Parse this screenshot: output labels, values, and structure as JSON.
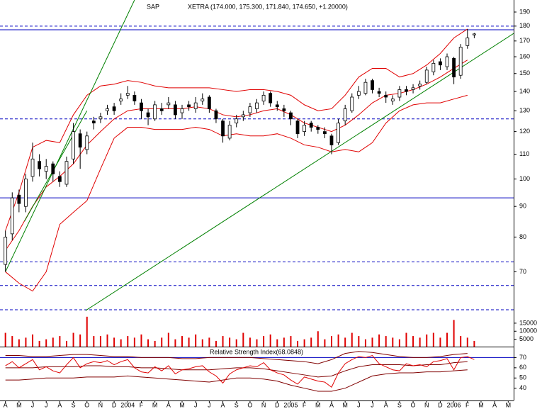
{
  "chart_data": [
    {
      "type": "candlestick",
      "title": "SAP",
      "subtitle": "XETRA (174.000, 175.300, 171.840, 174.650, +1.20000)",
      "log": true,
      "xlim": [
        -0.4,
        37.4
      ],
      "ylim": [
        60,
        199
      ],
      "yticks": [
        70,
        80,
        90,
        100,
        110,
        120,
        130,
        140,
        150,
        160,
        170,
        180,
        190
      ],
      "up_color": "#ffffff",
      "down_color": "#000000",
      "x": [
        0,
        0.5,
        1,
        1.5,
        2,
        2.5,
        3,
        3.5,
        4,
        4.5,
        5,
        5.5,
        6,
        6.5,
        7,
        7.5,
        8,
        8.5,
        9,
        9.5,
        10,
        10.5,
        11,
        11.5,
        12,
        12.5,
        13,
        13.5,
        14,
        14.5,
        15,
        15.5,
        16,
        16.5,
        17,
        17.5,
        18,
        18.5,
        19,
        19.5,
        20,
        20.5,
        21,
        21.5,
        22,
        22.5,
        23,
        23.5,
        24,
        24.5,
        25,
        25.5,
        26,
        26.5,
        27,
        27.5,
        28,
        28.5,
        29,
        29.5,
        30,
        30.5,
        31,
        31.5,
        32,
        32.5,
        33,
        33.5,
        34,
        34.5
      ],
      "open": [
        72,
        81,
        94,
        90,
        101,
        107,
        103,
        106,
        101,
        98,
        108,
        119,
        112,
        125,
        126,
        130,
        132,
        135,
        138,
        138,
        134,
        129,
        126,
        131,
        133,
        133,
        129,
        133,
        131,
        135,
        137,
        130,
        125,
        117,
        124,
        127,
        129,
        131,
        135,
        139,
        133,
        131,
        129,
        125,
        120,
        124,
        122,
        120,
        118,
        115,
        125,
        130,
        138,
        139,
        146,
        140,
        138,
        135,
        137,
        141,
        141,
        143,
        145,
        151,
        157,
        154,
        159,
        149,
        167,
        174
      ],
      "high": [
        82,
        95,
        96,
        102,
        115,
        110,
        108,
        107,
        103,
        109,
        124,
        121,
        120,
        127,
        129,
        133,
        134,
        139,
        143,
        140,
        136,
        131,
        135,
        134,
        137,
        135,
        133,
        135,
        137,
        139,
        138,
        131,
        126,
        125,
        128,
        130,
        134,
        136,
        140,
        140,
        135,
        133,
        130,
        126,
        125,
        125,
        123,
        122,
        119,
        126,
        133,
        139,
        143,
        147,
        147,
        142,
        140,
        138,
        143,
        143,
        144,
        146,
        154,
        158,
        159,
        162,
        160,
        168,
        178,
        175.3
      ],
      "low": [
        70,
        79,
        88,
        88,
        99,
        101,
        100,
        99,
        97,
        97,
        106,
        104,
        110,
        121,
        124,
        128,
        128,
        133,
        136,
        133,
        126,
        123,
        125,
        128,
        131,
        126,
        126,
        130,
        129,
        133,
        129,
        124,
        115,
        116,
        122,
        125,
        127,
        129,
        133,
        132,
        130,
        127,
        123,
        117,
        118,
        120,
        119,
        117,
        110,
        114,
        123,
        129,
        136,
        138,
        139,
        137,
        134,
        133,
        135,
        138,
        139,
        141,
        144,
        149,
        152,
        152,
        144,
        147,
        165,
        171.84
      ],
      "close": [
        80,
        93,
        91,
        100,
        108,
        104,
        105,
        102,
        99,
        107,
        120,
        113,
        118,
        124,
        127,
        131,
        130,
        136,
        139,
        135,
        130,
        127,
        133,
        130,
        134,
        128,
        131,
        132,
        134,
        136,
        131,
        126,
        118,
        123,
        126,
        128,
        132,
        134,
        138,
        134,
        132,
        130,
        126,
        119,
        123,
        122,
        121,
        119,
        114,
        124,
        131,
        137,
        140,
        145,
        141,
        139,
        137,
        136,
        141,
        140,
        142,
        144,
        152,
        156,
        155,
        160,
        148,
        166,
        172,
        174.65
      ],
      "band_x": [
        0,
        1,
        2,
        3,
        4,
        5,
        6,
        7,
        8,
        9,
        10,
        11,
        12,
        13,
        14,
        15,
        16,
        17,
        18,
        19,
        20,
        21,
        22,
        23,
        24,
        25,
        26,
        27,
        28,
        29,
        30,
        31,
        32,
        33,
        34
      ],
      "bands": [
        {
          "color": "#e00000",
          "values": [
            82,
            95,
            113,
            116,
            115,
            128,
            138,
            143,
            144,
            146,
            145,
            143,
            142,
            142,
            142,
            142,
            141,
            140,
            141,
            141,
            140,
            138,
            133,
            130,
            131,
            138,
            148,
            153,
            153,
            148,
            150,
            155,
            162,
            172,
            178
          ]
        },
        {
          "color": "#e00000",
          "values": [
            76,
            82,
            90,
            97,
            101,
            106,
            114,
            120,
            126,
            130,
            131,
            131,
            131,
            131,
            132,
            131,
            128,
            127,
            128,
            130,
            131,
            128,
            124,
            122,
            120,
            123,
            128,
            134,
            138,
            139,
            141,
            144,
            148,
            153,
            158
          ]
        },
        {
          "color": "#e00000",
          "values": [
            70,
            67,
            65,
            70,
            84,
            88,
            92,
            104,
            117,
            122,
            122,
            121,
            121,
            121,
            122,
            121,
            118,
            119,
            118,
            118,
            119,
            117,
            114,
            113,
            111,
            112,
            111,
            115,
            124,
            130,
            133,
            134,
            134,
            136,
            138
          ]
        }
      ],
      "hlines": [
        {
          "value": 180,
          "style": "dashed",
          "color": "#0000c0"
        },
        {
          "value": 177.5,
          "style": "solid",
          "color": "#0000c0"
        },
        {
          "value": 126,
          "style": "dashed",
          "color": "#0000c0"
        },
        {
          "value": 93,
          "style": "solid",
          "color": "#0000c0"
        },
        {
          "value": 72.7,
          "style": "dashed",
          "color": "#0000c0"
        },
        {
          "value": 66.4,
          "style": "dashed",
          "color": "#0000c0"
        },
        {
          "value": 60.5,
          "style": "dashed",
          "color": "#0000c0"
        }
      ],
      "trendlines": [
        {
          "x": [
            0,
            9.5
          ],
          "y": [
            70,
            199
          ],
          "color": "#008000"
        },
        {
          "x": [
            1.4,
            6
          ],
          "y": [
            85,
            130
          ],
          "color": "#008000"
        },
        {
          "x": [
            5.9,
            37.4
          ],
          "y": [
            60.3,
            175
          ],
          "color": "#008000"
        }
      ]
    },
    {
      "type": "bar",
      "color": "#e00000",
      "xlim": [
        -0.4,
        37.4
      ],
      "ylim": [
        0,
        22000
      ],
      "yticks": [
        5000,
        10000,
        15000
      ],
      "x": [
        0,
        0.5,
        1,
        1.5,
        2,
        2.5,
        3,
        3.5,
        4,
        4.5,
        5,
        5.5,
        6,
        6.5,
        7,
        7.5,
        8,
        8.5,
        9,
        9.5,
        10,
        10.5,
        11,
        11.5,
        12,
        12.5,
        13,
        13.5,
        14,
        14.5,
        15,
        15.5,
        16,
        16.5,
        17,
        17.5,
        18,
        18.5,
        19,
        19.5,
        20,
        20.5,
        21,
        21.5,
        22,
        22.5,
        23,
        23.5,
        24,
        24.5,
        25,
        25.5,
        26,
        26.5,
        27,
        27.5,
        28,
        28.5,
        29,
        29.5,
        30,
        30.5,
        31,
        31.5,
        32,
        32.5,
        33,
        33.5,
        34,
        34.5
      ],
      "values": [
        9000,
        7000,
        5000,
        6000,
        8000,
        4000,
        5000,
        6000,
        7000,
        4000,
        9000,
        8000,
        19000,
        7000,
        7000,
        8000,
        6000,
        5000,
        7000,
        6000,
        8000,
        5000,
        4000,
        6000,
        9000,
        5000,
        7000,
        6000,
        8000,
        5000,
        6000,
        4000,
        7000,
        6000,
        5000,
        9000,
        6000,
        5000,
        7000,
        8000,
        5000,
        6000,
        7000,
        4000,
        5000,
        6000,
        10000,
        5000,
        7000,
        8000,
        6000,
        9000,
        7000,
        5000,
        6000,
        8000,
        7000,
        6000,
        5000,
        9000,
        7000,
        6000,
        8000,
        9000,
        6000,
        9000,
        17000,
        7000,
        6000,
        4000
      ]
    },
    {
      "type": "line",
      "title": "Relative Strength Index(68.0848)",
      "color": "#e00000",
      "xlim": [
        -0.4,
        37.4
      ],
      "ylim": [
        28,
        80
      ],
      "yticks": [
        40,
        50,
        60,
        70
      ],
      "x": [
        0,
        0.5,
        1,
        1.5,
        2,
        2.5,
        3,
        3.5,
        4,
        4.5,
        5,
        5.5,
        6,
        6.5,
        7,
        7.5,
        8,
        8.5,
        9,
        9.5,
        10,
        10.5,
        11,
        11.5,
        12,
        12.5,
        13,
        13.5,
        14,
        14.5,
        15,
        15.5,
        16,
        16.5,
        17,
        17.5,
        18,
        18.5,
        19,
        19.5,
        20,
        20.5,
        21,
        21.5,
        22,
        22.5,
        23,
        23.5,
        24,
        24.5,
        25,
        25.5,
        26,
        26.5,
        27,
        27.5,
        28,
        28.5,
        29,
        29.5,
        30,
        30.5,
        31,
        31.5,
        32,
        32.5,
        33,
        33.5,
        34,
        34.5
      ],
      "values": [
        62,
        66,
        60,
        64,
        68,
        58,
        61,
        57,
        55,
        63,
        70,
        60,
        64,
        66,
        65,
        67,
        63,
        66,
        68,
        60,
        56,
        55,
        61,
        57,
        62,
        54,
        58,
        59,
        61,
        62,
        56,
        52,
        45,
        54,
        58,
        60,
        62,
        61,
        65,
        58,
        55,
        53,
        48,
        44,
        51,
        49,
        47,
        46,
        41,
        55,
        64,
        68,
        71,
        70,
        72,
        64,
        61,
        58,
        57,
        64,
        62,
        63,
        61,
        66,
        67,
        69,
        58,
        70,
        71,
        68.0848
      ],
      "band_x": [
        0,
        1,
        2,
        3,
        4,
        5,
        6,
        7,
        8,
        9,
        10,
        11,
        12,
        13,
        14,
        15,
        16,
        17,
        18,
        19,
        20,
        21,
        22,
        23,
        24,
        25,
        26,
        27,
        28,
        29,
        30,
        31,
        32,
        33,
        34
      ],
      "bands": [
        {
          "color": "#800000",
          "values": [
            72,
            72,
            71,
            71,
            72,
            73,
            73,
            72,
            71,
            71,
            70,
            70,
            70,
            69,
            69,
            70,
            70,
            70,
            70,
            69,
            68,
            67,
            66,
            64,
            68,
            74,
            76,
            75,
            73,
            71,
            70,
            70,
            71,
            73,
            74
          ]
        },
        {
          "color": "#800000",
          "values": [
            60,
            60,
            60,
            61,
            61,
            61,
            62,
            62,
            61,
            61,
            60,
            60,
            59,
            58,
            58,
            58,
            59,
            60,
            60,
            59,
            57,
            55,
            53,
            51,
            52,
            57,
            61,
            63,
            63,
            63,
            62,
            63,
            63,
            65,
            66
          ]
        },
        {
          "color": "#800000",
          "values": [
            48,
            48,
            49,
            50,
            50,
            50,
            51,
            51,
            51,
            52,
            51,
            50,
            49,
            48,
            47,
            46,
            48,
            50,
            50,
            49,
            47,
            43,
            40,
            37,
            37,
            40,
            46,
            52,
            54,
            55,
            55,
            56,
            56,
            57,
            58
          ]
        }
      ],
      "hlines": [
        {
          "value": 70,
          "style": "solid",
          "color": "#0000c0"
        }
      ],
      "xticks": [
        {
          "value": 0,
          "label": "A"
        },
        {
          "value": 1,
          "label": "M"
        },
        {
          "value": 2,
          "label": "J"
        },
        {
          "value": 3,
          "label": "J"
        },
        {
          "value": 4,
          "label": "A"
        },
        {
          "value": 5,
          "label": "S"
        },
        {
          "value": 6,
          "label": "O"
        },
        {
          "value": 7,
          "label": "N"
        },
        {
          "value": 8,
          "label": "D"
        },
        {
          "value": 9,
          "label": "2004"
        },
        {
          "value": 10,
          "label": "F"
        },
        {
          "value": 11,
          "label": "M"
        },
        {
          "value": 12,
          "label": "A"
        },
        {
          "value": 13,
          "label": "M"
        },
        {
          "value": 14,
          "label": "J"
        },
        {
          "value": 15,
          "label": "J"
        },
        {
          "value": 16,
          "label": "A"
        },
        {
          "value": 17,
          "label": "S"
        },
        {
          "value": 18,
          "label": "O"
        },
        {
          "value": 19,
          "label": "N"
        },
        {
          "value": 20,
          "label": "D"
        },
        {
          "value": 21,
          "label": "2005"
        },
        {
          "value": 22,
          "label": "F"
        },
        {
          "value": 23,
          "label": "M"
        },
        {
          "value": 24,
          "label": "A"
        },
        {
          "value": 25,
          "label": "M"
        },
        {
          "value": 26,
          "label": "J"
        },
        {
          "value": 27,
          "label": "J"
        },
        {
          "value": 28,
          "label": "A"
        },
        {
          "value": 29,
          "label": "S"
        },
        {
          "value": 30,
          "label": "O"
        },
        {
          "value": 31,
          "label": "N"
        },
        {
          "value": 32,
          "label": "D"
        },
        {
          "value": 33,
          "label": "2006"
        },
        {
          "value": 34,
          "label": "F"
        },
        {
          "value": 35,
          "label": "M"
        },
        {
          "value": 36,
          "label": "A"
        },
        {
          "value": 37,
          "label": "M"
        }
      ]
    }
  ]
}
